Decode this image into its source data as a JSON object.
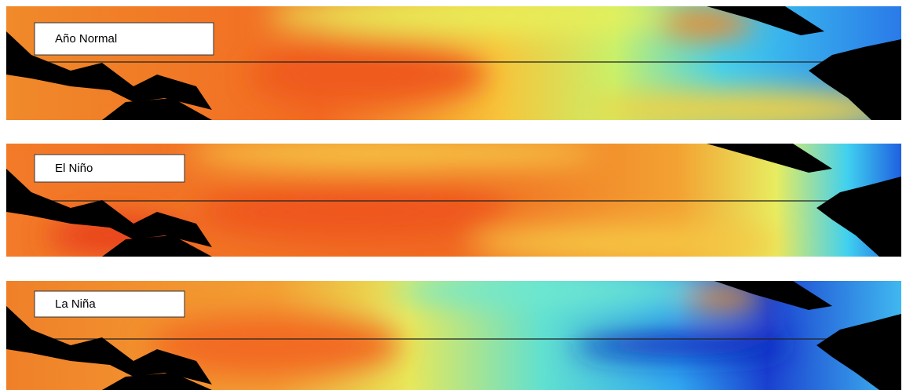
{
  "panels": [
    {
      "label": "Año Normal"
    },
    {
      "label": "El Niño"
    },
    {
      "label": "La Niña"
    }
  ]
}
